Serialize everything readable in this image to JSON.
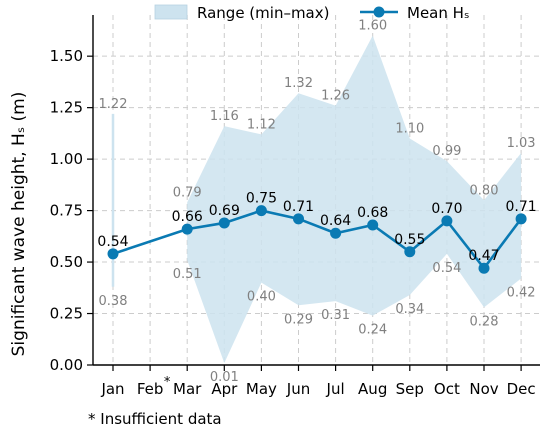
{
  "chart_data": {
    "type": "line",
    "ylabel": "Significant wave height, Hₛ (m)",
    "ylim": [
      0,
      1.7
    ],
    "yticks": [
      "0.00",
      "0.25",
      "0.50",
      "0.75",
      "1.00",
      "1.25",
      "1.50"
    ],
    "categories": [
      "Jan",
      "Feb",
      "Mar",
      "Apr",
      "May",
      "Jun",
      "Jul",
      "Aug",
      "Sep",
      "Oct",
      "Nov",
      "Dec"
    ],
    "missing_marker": "*",
    "grid": true,
    "legend_position": "top-center",
    "series": [
      {
        "name": "Mean Hₛ",
        "color": "#0a7ab3",
        "values": [
          0.54,
          null,
          0.66,
          0.69,
          0.75,
          0.71,
          0.64,
          0.68,
          0.55,
          0.7,
          0.47,
          0.71
        ],
        "labels": [
          "0.54",
          "",
          "0.66",
          "0.69",
          "0.75",
          "0.71",
          "0.64",
          "0.68",
          "0.55",
          "0.70",
          "0.47",
          "0.71"
        ]
      }
    ],
    "range": {
      "name": "Range (min–max)",
      "color": "#cde3ef",
      "min": [
        0.38,
        null,
        0.51,
        0.01,
        0.4,
        0.29,
        0.31,
        0.24,
        0.34,
        0.54,
        0.28,
        0.42
      ],
      "max": [
        1.22,
        null,
        0.79,
        1.16,
        1.12,
        1.32,
        1.26,
        1.6,
        1.1,
        0.99,
        0.8,
        1.03
      ],
      "min_labels": [
        "0.38",
        "",
        "0.51",
        "0.01",
        "0.40",
        "0.29",
        "0.31",
        "0.24",
        "0.34",
        "0.54",
        "0.28",
        "0.42"
      ],
      "max_labels": [
        "1.22",
        "",
        "0.79",
        "1.16",
        "1.12",
        "1.32",
        "1.26",
        "1.60",
        "1.10",
        "0.99",
        "0.80",
        "1.03"
      ]
    },
    "note": "* Insufficient data"
  }
}
